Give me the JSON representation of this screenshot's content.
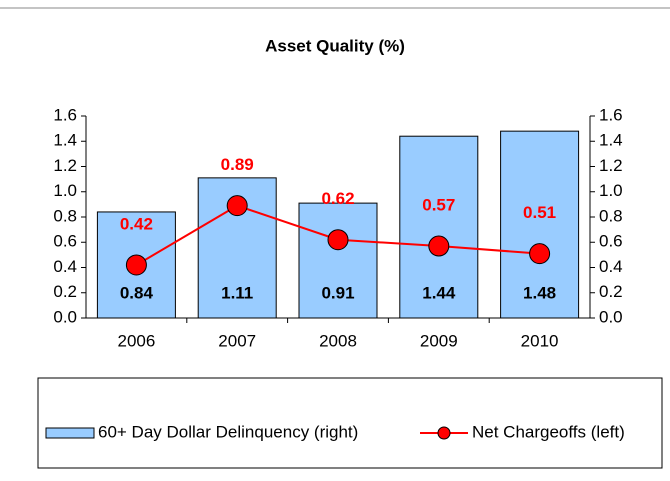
{
  "chart_data": {
    "type": "bar_line",
    "title": "Asset Quality (%)",
    "categories": [
      "2006",
      "2007",
      "2008",
      "2009",
      "2010"
    ],
    "series": [
      {
        "name": "60+ Day Dollar Delinquency (right)",
        "type": "bar",
        "axis": "y2",
        "color": "#99ccff",
        "values": [
          0.84,
          1.11,
          0.91,
          1.44,
          1.48
        ]
      },
      {
        "name": "Net Chargeoffs (left)",
        "type": "line",
        "color": "#ff0000",
        "values": [
          0.42,
          0.89,
          0.62,
          0.57,
          0.51
        ]
      }
    ],
    "ylim": [
      0,
      1.6
    ],
    "yticks": [
      {
        "value": 0,
        "label": "0.0"
      },
      0.2,
      0.4,
      0.6,
      0.8,
      {
        "value": 1,
        "label": "1.0"
      },
      1.2,
      1.4,
      1.6
    ],
    "y2lim": [
      0,
      1.6
    ],
    "y2ticks": [
      {
        "value": 0,
        "label": "0.0"
      },
      0.2,
      0.4,
      0.6,
      0.8,
      {
        "value": 1,
        "label": "1.0"
      },
      1.2,
      1.4,
      1.6
    ],
    "legend": "bottom"
  }
}
